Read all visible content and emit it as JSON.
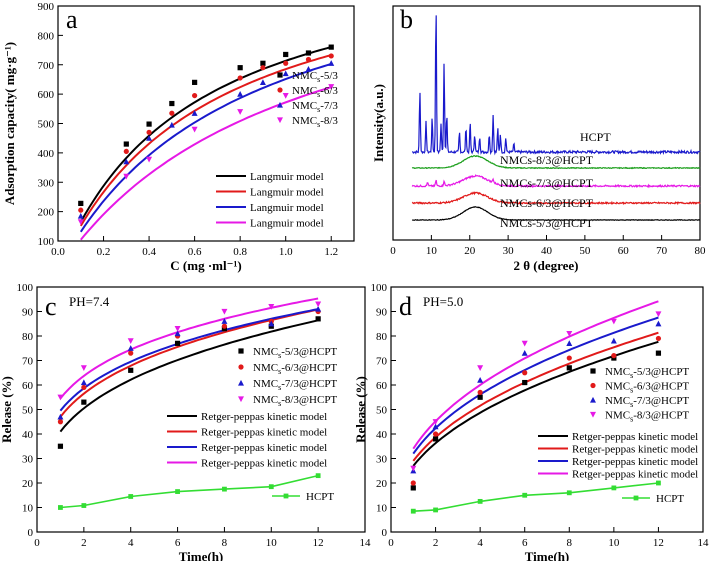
{
  "chart_data": [
    {
      "panel": "a",
      "type": "scatter",
      "xlabel": "C (mg ·ml⁻¹)",
      "ylabel": "Adsorption capacity( mg·g⁻¹)",
      "xlim": [
        0,
        1.3
      ],
      "ylim": [
        100,
        900
      ],
      "xticks": [
        "0.0",
        "0.2",
        "0.4",
        "0.6",
        "0.8",
        "1.0",
        "1.2"
      ],
      "yticks": [
        "100",
        "200",
        "300",
        "400",
        "500",
        "600",
        "700",
        "800",
        "900"
      ],
      "series": [
        {
          "name": "NMCs-5/3",
          "sub": "s",
          "suffix": "-5/3",
          "color": "#000000",
          "marker": "square",
          "x": [
            0.1,
            0.3,
            0.4,
            0.5,
            0.6,
            0.8,
            0.9,
            1.0,
            1.1,
            1.2
          ],
          "y": [
            228,
            430,
            498,
            568,
            640,
            690,
            705,
            735,
            740,
            760
          ]
        },
        {
          "name": "NMCs-6/3",
          "sub": "s",
          "suffix": "-6/3",
          "color": "#e11a1a",
          "marker": "circle",
          "x": [
            0.1,
            0.3,
            0.4,
            0.5,
            0.6,
            0.8,
            0.9,
            1.0,
            1.1,
            1.2
          ],
          "y": [
            205,
            405,
            470,
            535,
            595,
            655,
            690,
            705,
            718,
            730
          ]
        },
        {
          "name": "NMCs-7/3",
          "sub": "s",
          "suffix": "-7/3",
          "color": "#1a1acc",
          "marker": "triangle",
          "x": [
            0.1,
            0.3,
            0.4,
            0.5,
            0.6,
            0.8,
            0.9,
            1.0,
            1.1,
            1.2
          ],
          "y": [
            185,
            370,
            450,
            495,
            535,
            600,
            640,
            670,
            685,
            705
          ]
        },
        {
          "name": "NMCs-8/3",
          "sub": "s",
          "suffix": "-8/3",
          "color": "#e619e6",
          "marker": "triangle-down",
          "x": [
            0.1,
            0.3,
            0.4,
            0.6,
            0.8,
            1.0,
            1.2
          ],
          "y": [
            165,
            320,
            378,
            480,
            540,
            595,
            625
          ]
        }
      ],
      "fits": [
        {
          "name": "Langmuir model",
          "color": "#000000",
          "qmax": 1133,
          "K": 1.7
        },
        {
          "name": "Langmuir model",
          "color": "#e11a1a",
          "qmax": 1127,
          "K": 1.55
        },
        {
          "name": "Langmuir model",
          "color": "#1a1acc",
          "qmax": 1164,
          "K": 1.27
        },
        {
          "name": "Langmuir model",
          "color": "#e619e6",
          "qmax": 1144,
          "K": 1.0
        }
      ]
    },
    {
      "panel": "b",
      "type": "line",
      "xlabel": "2 θ (degree)",
      "ylabel": "Intensity(a.u.)",
      "xlim": [
        0,
        80
      ],
      "xticks": [
        "0",
        "10",
        "20",
        "30",
        "40",
        "50",
        "60",
        "70",
        "80"
      ],
      "series": [
        {
          "name": "HCPT",
          "color": "#1a1acc",
          "offset": 88,
          "hump_height": 0,
          "noise": 2.5,
          "peaks": [
            [
              7.0,
              62
            ],
            [
              8.6,
              30
            ],
            [
              10.2,
              34
            ],
            [
              11.2,
              148
            ],
            [
              12.5,
              28
            ],
            [
              13.3,
              90
            ],
            [
              14.0,
              38
            ],
            [
              17.3,
              20
            ],
            [
              19.0,
              25
            ],
            [
              20.1,
              30
            ],
            [
              21.3,
              18
            ],
            [
              22.6,
              16
            ],
            [
              25.1,
              18
            ],
            [
              26.1,
              38
            ],
            [
              27.3,
              24
            ],
            [
              28.0,
              18
            ],
            [
              29.4,
              14
            ],
            [
              31.5,
              8
            ]
          ]
        },
        {
          "name": "NMCs-8/3@HCPT",
          "color": "#1a9e1a",
          "offset": 72,
          "hump_height": 12,
          "noise": 0.8,
          "peaks": []
        },
        {
          "name": "NMCs-7/3@HCPT",
          "color": "#e619e6",
          "offset": 54,
          "hump_height": 10,
          "noise": 1.6,
          "peaks": [
            [
              9.0,
              4
            ],
            [
              11.2,
              6
            ],
            [
              13.3,
              5
            ],
            [
              26.1,
              4
            ]
          ]
        },
        {
          "name": "NMCs-6/3@HCPT",
          "color": "#e11a1a",
          "offset": 37,
          "hump_height": 10,
          "noise": 1.5,
          "peaks": []
        },
        {
          "name": "NMCs-5/3@HCPT",
          "color": "#000000",
          "offset": 20,
          "hump_height": 13,
          "noise": 0.6,
          "peaks": []
        }
      ]
    },
    {
      "panel": "c",
      "type": "scatter",
      "annotation": "PH=7.4",
      "xlabel": "Time(h)",
      "ylabel": "Release (%)",
      "xlim": [
        0,
        14
      ],
      "ylim": [
        0,
        100
      ],
      "xticks": [
        "0",
        "2",
        "4",
        "6",
        "8",
        "10",
        "12",
        "14"
      ],
      "yticks": [
        "0",
        "10",
        "20",
        "30",
        "40",
        "50",
        "60",
        "70",
        "80",
        "90",
        "100"
      ],
      "series": [
        {
          "name": "NMCs-5/3@HCPT",
          "sub": "s",
          "suffix": "-5/3@HCPT",
          "color": "#000000",
          "marker": "square",
          "x": [
            1,
            2,
            4,
            6,
            8,
            10,
            12
          ],
          "y": [
            35,
            53,
            66,
            77,
            83,
            84,
            87
          ]
        },
        {
          "name": "NMCs-6/3@HCPT",
          "sub": "s",
          "suffix": "-6/3@HCPT",
          "color": "#e11a1a",
          "marker": "circle",
          "x": [
            1,
            2,
            4,
            6,
            8,
            10,
            12
          ],
          "y": [
            45,
            59,
            73,
            80,
            84,
            86,
            90
          ]
        },
        {
          "name": "NMCs-7/3@HCPT",
          "sub": "s",
          "suffix": "-7/3@HCPT",
          "color": "#1a1acc",
          "marker": "triangle",
          "x": [
            1,
            2,
            4,
            6,
            8,
            10,
            12
          ],
          "y": [
            47,
            61,
            75,
            81,
            86,
            85,
            91
          ]
        },
        {
          "name": "NMCs-8/3@HCPT",
          "sub": "s",
          "suffix": "-8/3@HCPT",
          "color": "#e619e6",
          "marker": "triangle-down",
          "x": [
            1,
            2,
            4,
            6,
            8,
            10,
            12
          ],
          "y": [
            55,
            67,
            78,
            83,
            90,
            92,
            93
          ]
        }
      ],
      "fits": [
        {
          "name": "Retger-peppas kinetic model",
          "color": "#000000",
          "k": 41,
          "n": 0.3
        },
        {
          "name": "Retger-peppas kinetic model",
          "color": "#e11a1a",
          "k": 47,
          "n": 0.265
        },
        {
          "name": "Retger-peppas kinetic model",
          "color": "#1a1acc",
          "k": 49.5,
          "n": 0.245
        },
        {
          "name": "Retger-peppas kinetic model",
          "color": "#e619e6",
          "k": 54.5,
          "n": 0.225
        }
      ],
      "control": {
        "name": "HCPT",
        "color": "#33dd33",
        "marker": "square",
        "x": [
          1,
          2,
          4,
          6,
          8,
          10,
          12
        ],
        "y": [
          10,
          10.8,
          14.5,
          16.5,
          17.5,
          18.5,
          23
        ]
      }
    },
    {
      "panel": "d",
      "type": "scatter",
      "annotation": "PH=5.0",
      "xlabel": "Time(h)",
      "ylabel": "Release (%)",
      "xlim": [
        0,
        14
      ],
      "ylim": [
        0,
        100
      ],
      "xticks": [
        "0",
        "2",
        "4",
        "6",
        "8",
        "10",
        "12",
        "14"
      ],
      "yticks": [
        "0",
        "10",
        "20",
        "30",
        "40",
        "50",
        "60",
        "70",
        "80",
        "90",
        "100"
      ],
      "series": [
        {
          "name": "NMCs-5/3@HCPT",
          "sub": "s",
          "suffix": "-5/3@HCPT",
          "color": "#000000",
          "marker": "square",
          "x": [
            1,
            2,
            4,
            6,
            8,
            10,
            12
          ],
          "y": [
            18,
            38,
            55,
            61,
            67,
            71,
            73
          ]
        },
        {
          "name": "NMCs-6/3@HCPT",
          "sub": "s",
          "suffix": "-6/3@HCPT",
          "color": "#e11a1a",
          "marker": "circle",
          "x": [
            1,
            2,
            4,
            6,
            8,
            10,
            12
          ],
          "y": [
            20,
            40,
            57,
            65,
            71,
            72,
            79
          ]
        },
        {
          "name": "NMCs-7/3@HCPT",
          "sub": "s",
          "suffix": "-7/3@HCPT",
          "color": "#1a1acc",
          "marker": "triangle",
          "x": [
            1,
            2,
            4,
            6,
            8,
            10,
            12
          ],
          "y": [
            25,
            43,
            62,
            73,
            77,
            78,
            85
          ]
        },
        {
          "name": "NMCs-8/3@HCPT",
          "sub": "s",
          "suffix": "-8/3@HCPT",
          "color": "#e619e6",
          "marker": "triangle-down",
          "x": [
            1,
            2,
            4,
            6,
            8,
            10,
            12
          ],
          "y": [
            26,
            45,
            67,
            77,
            81,
            86,
            89
          ]
        }
      ],
      "fits": [
        {
          "name": "Retger-peppas kinetic model",
          "color": "#000000",
          "k": 27,
          "n": 0.425
        },
        {
          "name": "Retger-peppas  kinetic model",
          "color": "#e11a1a",
          "k": 29,
          "n": 0.415
        },
        {
          "name": "Retger-peppas  kinetic model",
          "color": "#1a1acc",
          "k": 32,
          "n": 0.405
        },
        {
          "name": "Retger-peppas  kinetic model",
          "color": "#e619e6",
          "k": 34,
          "n": 0.41
        }
      ],
      "control": {
        "name": "HCPT",
        "color": "#33dd33",
        "marker": "square",
        "x": [
          1,
          2,
          4,
          6,
          8,
          10,
          12
        ],
        "y": [
          8.5,
          9,
          12.5,
          15,
          16,
          18,
          20
        ]
      }
    }
  ]
}
